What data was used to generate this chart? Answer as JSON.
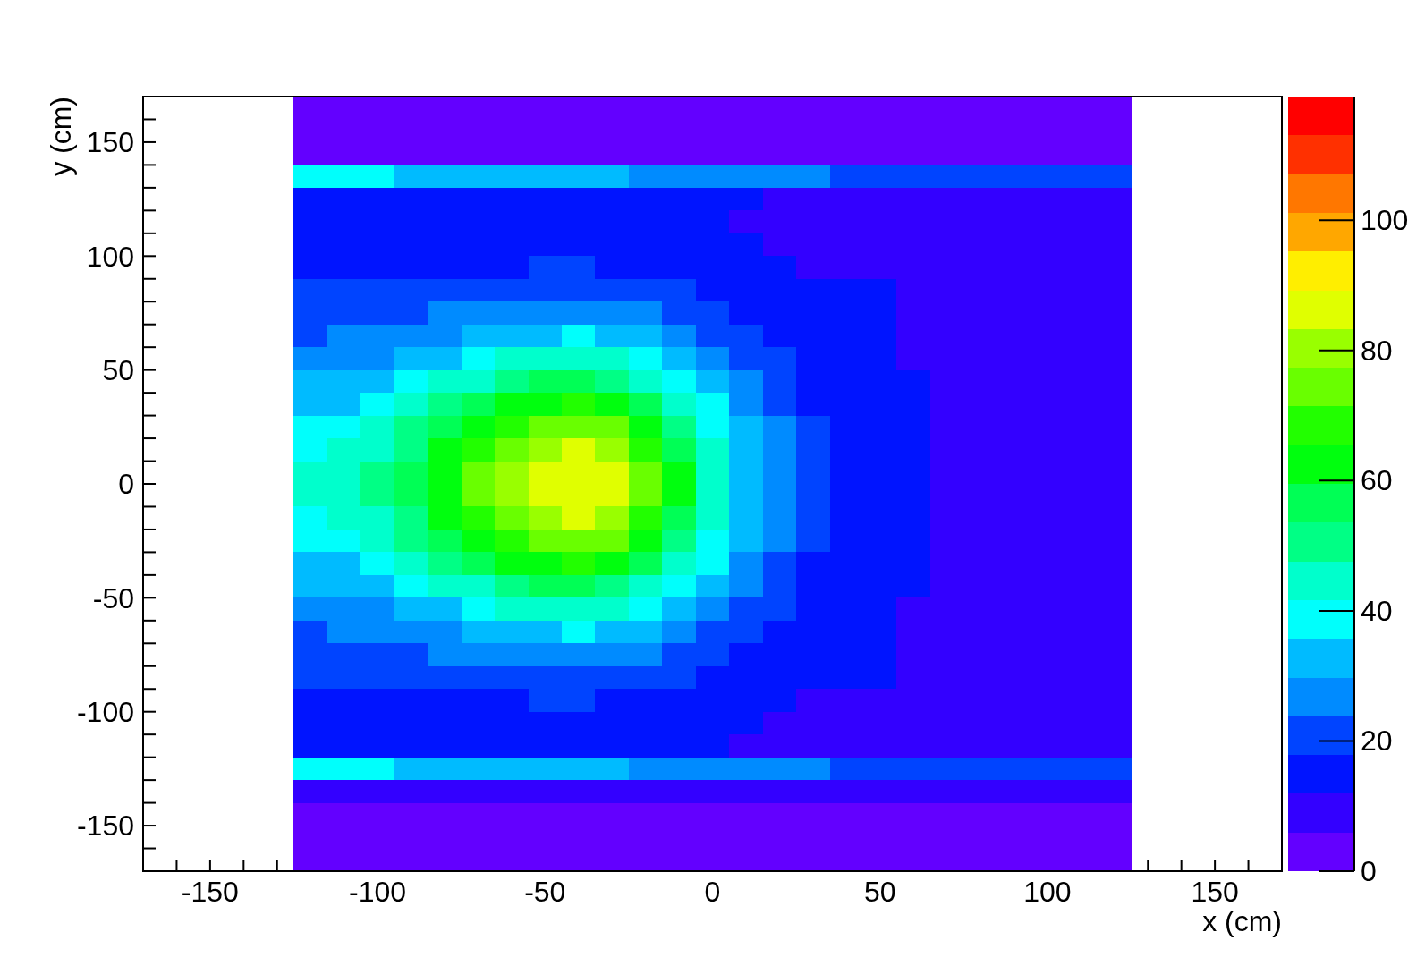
{
  "chart_data": {
    "type": "heatmap",
    "xlabel": "x (cm)",
    "ylabel": "y (cm)",
    "x": [
      -120,
      -110,
      -100,
      -90,
      -80,
      -70,
      -60,
      -50,
      -40,
      -30,
      -20,
      -10,
      0,
      10,
      20,
      30,
      40,
      50,
      60,
      70,
      80,
      90,
      100,
      110,
      120
    ],
    "xlim": [
      -170,
      170
    ],
    "ylim": [
      -170,
      170
    ],
    "xticks": [
      {
        "value": -160,
        "label": null
      },
      -150,
      {
        "value": -140,
        "label": null
      },
      {
        "value": -130,
        "label": null
      },
      {
        "value": -120,
        "label": null
      },
      {
        "value": -110,
        "label": null
      },
      -100,
      {
        "value": -90,
        "label": null
      },
      {
        "value": -80,
        "label": null
      },
      {
        "value": -70,
        "label": null
      },
      {
        "value": -60,
        "label": null
      },
      -50,
      {
        "value": -40,
        "label": null
      },
      {
        "value": -30,
        "label": null
      },
      {
        "value": -20,
        "label": null
      },
      {
        "value": -10,
        "label": null
      },
      0,
      {
        "value": 10,
        "label": null
      },
      {
        "value": 20,
        "label": null
      },
      {
        "value": 30,
        "label": null
      },
      {
        "value": 40,
        "label": null
      },
      50,
      {
        "value": 60,
        "label": null
      },
      {
        "value": 70,
        "label": null
      },
      {
        "value": 80,
        "label": null
      },
      {
        "value": 90,
        "label": null
      },
      100,
      {
        "value": 110,
        "label": null
      },
      {
        "value": 120,
        "label": null
      },
      {
        "value": 130,
        "label": null
      },
      {
        "value": 140,
        "label": null
      },
      150,
      {
        "value": 160,
        "label": null
      }
    ],
    "yticks": [
      {
        "value": -160,
        "label": null
      },
      -150,
      {
        "value": -140,
        "label": null
      },
      {
        "value": -130,
        "label": null
      },
      {
        "value": -120,
        "label": null
      },
      {
        "value": -110,
        "label": null
      },
      -100,
      {
        "value": -90,
        "label": null
      },
      {
        "value": -80,
        "label": null
      },
      {
        "value": -70,
        "label": null
      },
      {
        "value": -60,
        "label": null
      },
      -50,
      {
        "value": -40,
        "label": null
      },
      {
        "value": -30,
        "label": null
      },
      {
        "value": -20,
        "label": null
      },
      {
        "value": -10,
        "label": null
      },
      0,
      {
        "value": 10,
        "label": null
      },
      {
        "value": 20,
        "label": null
      },
      {
        "value": 30,
        "label": null
      },
      {
        "value": 40,
        "label": null
      },
      50,
      {
        "value": 60,
        "label": null
      },
      {
        "value": 70,
        "label": null
      },
      {
        "value": 80,
        "label": null
      },
      {
        "value": 90,
        "label": null
      },
      100,
      {
        "value": 110,
        "label": null
      },
      {
        "value": 120,
        "label": null
      },
      {
        "value": 130,
        "label": null
      },
      {
        "value": 140,
        "label": null
      },
      150,
      {
        "value": 160,
        "label": null
      }
    ],
    "cells": [
      [
        1,
        1,
        1,
        1,
        1,
        1,
        1,
        1,
        1,
        1,
        1,
        1,
        1,
        1,
        1,
        1,
        1,
        1,
        1,
        1,
        1,
        1,
        1,
        1,
        1
      ],
      [
        2,
        2,
        2,
        2,
        2,
        2,
        2,
        2,
        2,
        2,
        2,
        2,
        2,
        2,
        2,
        2,
        1,
        1,
        1,
        1,
        1,
        1,
        1,
        1,
        1
      ],
      [
        3,
        3,
        3,
        3,
        3,
        3,
        3,
        3,
        3,
        3,
        3,
        3,
        3,
        3,
        3,
        3,
        3,
        3,
        2,
        2,
        2,
        2,
        2,
        2,
        2
      ],
      [
        38,
        37,
        36,
        35,
        34,
        34,
        33,
        32,
        31,
        30,
        29,
        28,
        27,
        26,
        25,
        24,
        23,
        22,
        22,
        21,
        20,
        20,
        19,
        19,
        18
      ],
      [
        14,
        14,
        14,
        13,
        13,
        13,
        13,
        13,
        13,
        12,
        12,
        12,
        12,
        12,
        11,
        11,
        11,
        11,
        10,
        10,
        10,
        10,
        10,
        9,
        9
      ],
      [
        14,
        14,
        14,
        14,
        14,
        14,
        14,
        14,
        14,
        13,
        13,
        12,
        12,
        11,
        11,
        10,
        10,
        10,
        10,
        9,
        9,
        9,
        9,
        8,
        8
      ],
      [
        15,
        15,
        15,
        15,
        15,
        15,
        15,
        15,
        15,
        15,
        14,
        13,
        12,
        12,
        11,
        11,
        10,
        10,
        10,
        9,
        9,
        9,
        9,
        8,
        8
      ],
      [
        16,
        16,
        16,
        16,
        16,
        17,
        17,
        18,
        18,
        17,
        16,
        15,
        14,
        12,
        12,
        11,
        10,
        10,
        10,
        9,
        9,
        9,
        9,
        8,
        8
      ],
      [
        18,
        18,
        19,
        20,
        20,
        21,
        22,
        23,
        23,
        22,
        21,
        19,
        17,
        15,
        14,
        13,
        12,
        12,
        11,
        11,
        11,
        10,
        10,
        10,
        10
      ],
      [
        21,
        21,
        21,
        23,
        24,
        26,
        27,
        28,
        28,
        27,
        25,
        22,
        19,
        17,
        15,
        13,
        12,
        12,
        11,
        11,
        11,
        10,
        10,
        10,
        10
      ],
      [
        23,
        24,
        25,
        27,
        29,
        31,
        34,
        35,
        36,
        34,
        31,
        27,
        23,
        19,
        16,
        14,
        13,
        12,
        11,
        11,
        11,
        10,
        10,
        10,
        10
      ],
      [
        26,
        27,
        29,
        32,
        35,
        39,
        42,
        44,
        45,
        43,
        39,
        33,
        27,
        21,
        18,
        15,
        13,
        12,
        11,
        11,
        11,
        10,
        10,
        10,
        10
      ],
      [
        30,
        31,
        34,
        37,
        42,
        47,
        51,
        54,
        55,
        53,
        47,
        39,
        31,
        25,
        20,
        16,
        14,
        12,
        12,
        11,
        11,
        10,
        10,
        10,
        10
      ],
      [
        34,
        35,
        38,
        43,
        49,
        55,
        60,
        65,
        66,
        63,
        56,
        46,
        36,
        28,
        22,
        17,
        14,
        13,
        12,
        11,
        11,
        10,
        10,
        10,
        10
      ],
      [
        38,
        39,
        43,
        49,
        55,
        63,
        69,
        74,
        76,
        73,
        64,
        52,
        41,
        31,
        24,
        18,
        15,
        13,
        12,
        11,
        11,
        10,
        10,
        10,
        10
      ],
      [
        40,
        42,
        46,
        53,
        60,
        68,
        76,
        82,
        84,
        80,
        70,
        57,
        44,
        33,
        25,
        19,
        15,
        13,
        12,
        11,
        11,
        10,
        10,
        10,
        10
      ],
      [
        42,
        44,
        48,
        55,
        63,
        72,
        79,
        86,
        88,
        84,
        73,
        60,
        46,
        34,
        26,
        20,
        16,
        13,
        12,
        11,
        11,
        10,
        10,
        10,
        10
      ],
      [
        43,
        45,
        49,
        56,
        64,
        72,
        80,
        87,
        89,
        85,
        74,
        60,
        46,
        34,
        26,
        20,
        16,
        13,
        12,
        11,
        11,
        10,
        10,
        10,
        10
      ],
      [
        40,
        42,
        46,
        53,
        60,
        68,
        76,
        82,
        84,
        80,
        70,
        57,
        44,
        33,
        25,
        19,
        15,
        13,
        12,
        11,
        11,
        10,
        10,
        10,
        10
      ],
      [
        38,
        39,
        43,
        49,
        55,
        63,
        69,
        74,
        76,
        73,
        64,
        52,
        41,
        31,
        24,
        18,
        15,
        13,
        12,
        11,
        11,
        10,
        10,
        10,
        10
      ],
      [
        34,
        35,
        38,
        43,
        49,
        55,
        60,
        65,
        66,
        63,
        56,
        46,
        36,
        28,
        22,
        17,
        14,
        13,
        12,
        11,
        11,
        10,
        10,
        10,
        10
      ],
      [
        30,
        31,
        34,
        37,
        42,
        47,
        51,
        54,
        55,
        53,
        47,
        39,
        31,
        25,
        20,
        16,
        14,
        12,
        12,
        11,
        11,
        10,
        10,
        10,
        10
      ],
      [
        26,
        27,
        29,
        32,
        35,
        39,
        42,
        44,
        45,
        43,
        39,
        33,
        27,
        21,
        18,
        15,
        13,
        12,
        11,
        11,
        11,
        10,
        10,
        10,
        10
      ],
      [
        23,
        24,
        25,
        27,
        29,
        31,
        34,
        35,
        36,
        34,
        31,
        27,
        23,
        19,
        16,
        14,
        13,
        12,
        11,
        11,
        11,
        10,
        10,
        10,
        10
      ],
      [
        21,
        21,
        21,
        23,
        24,
        26,
        27,
        28,
        28,
        27,
        25,
        22,
        19,
        17,
        15,
        13,
        12,
        12,
        11,
        11,
        11,
        10,
        10,
        10,
        10
      ],
      [
        18,
        18,
        19,
        20,
        20,
        21,
        22,
        23,
        23,
        22,
        21,
        19,
        17,
        15,
        14,
        13,
        12,
        12,
        11,
        11,
        11,
        10,
        10,
        10,
        10
      ],
      [
        16,
        16,
        16,
        16,
        16,
        17,
        17,
        18,
        18,
        17,
        16,
        15,
        14,
        12,
        12,
        11,
        10,
        10,
        10,
        9,
        9,
        9,
        9,
        8,
        8
      ],
      [
        15,
        15,
        15,
        15,
        15,
        15,
        15,
        15,
        15,
        15,
        14,
        13,
        12,
        12,
        11,
        11,
        10,
        10,
        10,
        9,
        9,
        9,
        9,
        8,
        8
      ],
      [
        14,
        14,
        14,
        14,
        14,
        14,
        14,
        14,
        14,
        13,
        13,
        12,
        12,
        11,
        11,
        10,
        10,
        10,
        10,
        9,
        9,
        9,
        9,
        8,
        8
      ],
      [
        37,
        37,
        36,
        35,
        34,
        33,
        33,
        32,
        31,
        30,
        29,
        28,
        27,
        26,
        25,
        24,
        23,
        22,
        21,
        21,
        20,
        20,
        19,
        19,
        18
      ],
      [
        9,
        9,
        9,
        9,
        9,
        9,
        8,
        8,
        8,
        8,
        8,
        8,
        8,
        8,
        8,
        8,
        8,
        8,
        7,
        7,
        7,
        7,
        7,
        7,
        7
      ],
      [
        4,
        4,
        4,
        4,
        4,
        3,
        3,
        3,
        3,
        3,
        3,
        3,
        3,
        3,
        3,
        3,
        3,
        3,
        3,
        2,
        2,
        2,
        2,
        2,
        2
      ],
      [
        2,
        2,
        2,
        2,
        2,
        2,
        2,
        2,
        2,
        2,
        2,
        2,
        2,
        2,
        2,
        2,
        2,
        2,
        1,
        1,
        1,
        1,
        1,
        1,
        1
      ],
      [
        1,
        1,
        1,
        1,
        1,
        1,
        1,
        1,
        1,
        1,
        1,
        1,
        1,
        1,
        1,
        1,
        1,
        1,
        1,
        1,
        1,
        1,
        1,
        1,
        1
      ]
    ],
    "clim": [
      0,
      119
    ],
    "cticks": [
      0,
      20,
      40,
      60,
      80,
      100
    ]
  }
}
